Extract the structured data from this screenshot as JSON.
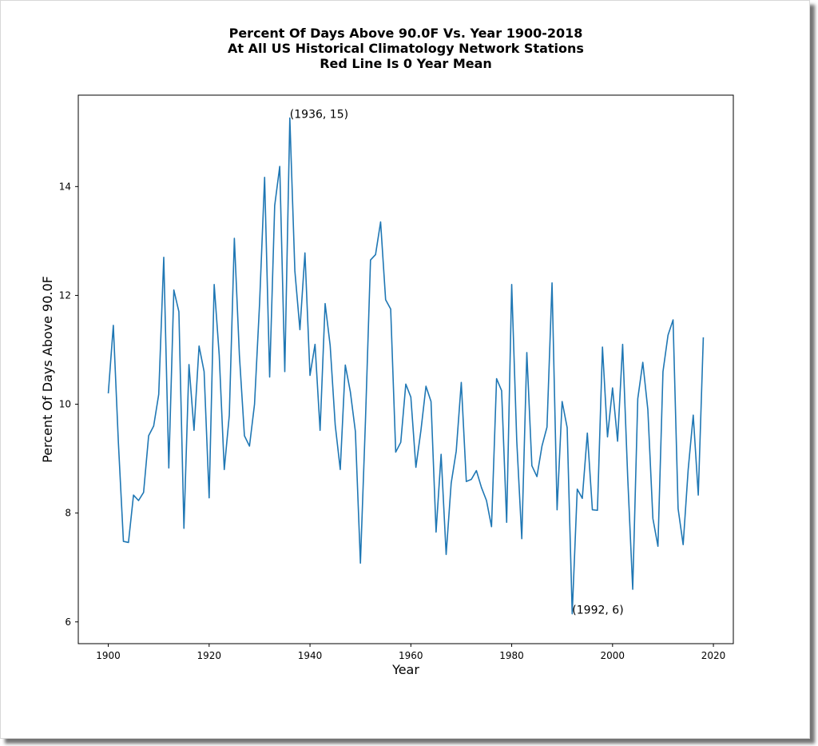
{
  "chart_data": {
    "type": "line",
    "title": [
      "Percent Of Days Above 90.0F Vs. Year 1900-2018",
      "At All US Historical Climatology Network Stations",
      "Red Line Is 0 Year Mean"
    ],
    "xlabel": "Year",
    "ylabel": "Percent Of Days Above 90.0F",
    "xlim": [
      1894.05,
      2023.95
    ],
    "ylim": [
      5.6,
      15.68
    ],
    "xticks": [
      1900,
      1920,
      1940,
      1960,
      1980,
      2000,
      2020
    ],
    "yticks": [
      6,
      8,
      10,
      12,
      14
    ],
    "grid": false,
    "line_color": "#1f77b4",
    "series": [
      {
        "x": [
          1900,
          1901,
          1902,
          1903,
          1904,
          1905,
          1906,
          1907,
          1908,
          1909,
          1910,
          1911,
          1912,
          1913,
          1914,
          1915,
          1916,
          1917,
          1918,
          1919,
          1920,
          1921,
          1922,
          1923,
          1924,
          1925,
          1926,
          1927,
          1928,
          1929,
          1930,
          1931,
          1932,
          1933,
          1934,
          1935,
          1936,
          1937,
          1938,
          1939,
          1940,
          1941,
          1942,
          1943,
          1944,
          1945,
          1946,
          1947,
          1948,
          1949,
          1950,
          1951,
          1952,
          1953,
          1954,
          1955,
          1956,
          1957,
          1958,
          1959,
          1960,
          1961,
          1962,
          1963,
          1964,
          1965,
          1966,
          1967,
          1968,
          1969,
          1970,
          1971,
          1972,
          1973,
          1974,
          1975,
          1976,
          1977,
          1978,
          1979,
          1980,
          1981,
          1982,
          1983,
          1984,
          1985,
          1986,
          1987,
          1988,
          1989,
          1990,
          1991,
          1992,
          1993,
          1994,
          1995,
          1996,
          1997,
          1998,
          1999,
          2000,
          2001,
          2002,
          2003,
          2004,
          2005,
          2006,
          2007,
          2008,
          2009,
          2010,
          2011,
          2012,
          2013,
          2014,
          2015,
          2016,
          2017,
          2018
        ],
        "values": [
          10.2,
          11.45,
          9.3,
          7.48,
          7.46,
          8.33,
          8.23,
          8.38,
          9.42,
          9.6,
          10.18,
          12.7,
          8.83,
          12.1,
          11.7,
          7.72,
          10.73,
          9.52,
          11.07,
          10.6,
          8.28,
          12.2,
          10.9,
          8.8,
          9.8,
          13.05,
          10.9,
          9.42,
          9.23,
          10.0,
          11.85,
          14.17,
          10.5,
          13.65,
          14.37,
          10.6,
          15.26,
          12.45,
          11.37,
          12.78,
          10.53,
          11.1,
          9.52,
          11.85,
          11.08,
          9.62,
          8.8,
          10.72,
          10.23,
          9.5,
          7.08,
          9.7,
          12.65,
          12.75,
          13.35,
          11.92,
          11.75,
          9.12,
          9.3,
          10.37,
          10.13,
          8.84,
          9.52,
          10.33,
          10.05,
          7.65,
          9.08,
          7.24,
          8.55,
          9.14,
          10.4,
          8.58,
          8.62,
          8.78,
          8.47,
          8.23,
          7.75,
          10.47,
          10.25,
          7.83,
          12.2,
          9.33,
          7.53,
          10.95,
          8.87,
          8.67,
          9.23,
          9.58,
          12.23,
          8.06,
          10.05,
          9.57,
          6.15,
          8.44,
          8.27,
          9.47,
          8.06,
          8.05,
          11.05,
          9.4,
          10.3,
          9.32,
          11.1,
          8.67,
          6.6,
          10.1,
          10.77,
          9.9,
          7.9,
          7.39,
          10.6,
          11.27,
          11.55,
          8.08,
          7.42,
          8.8,
          9.8,
          8.33,
          11.23
        ]
      }
    ],
    "annotations": [
      {
        "text": "(1936, 15)",
        "x": 1936,
        "y": 15.26
      },
      {
        "text": "(1992, 6)",
        "x": 1992,
        "y": 6.15
      }
    ]
  }
}
